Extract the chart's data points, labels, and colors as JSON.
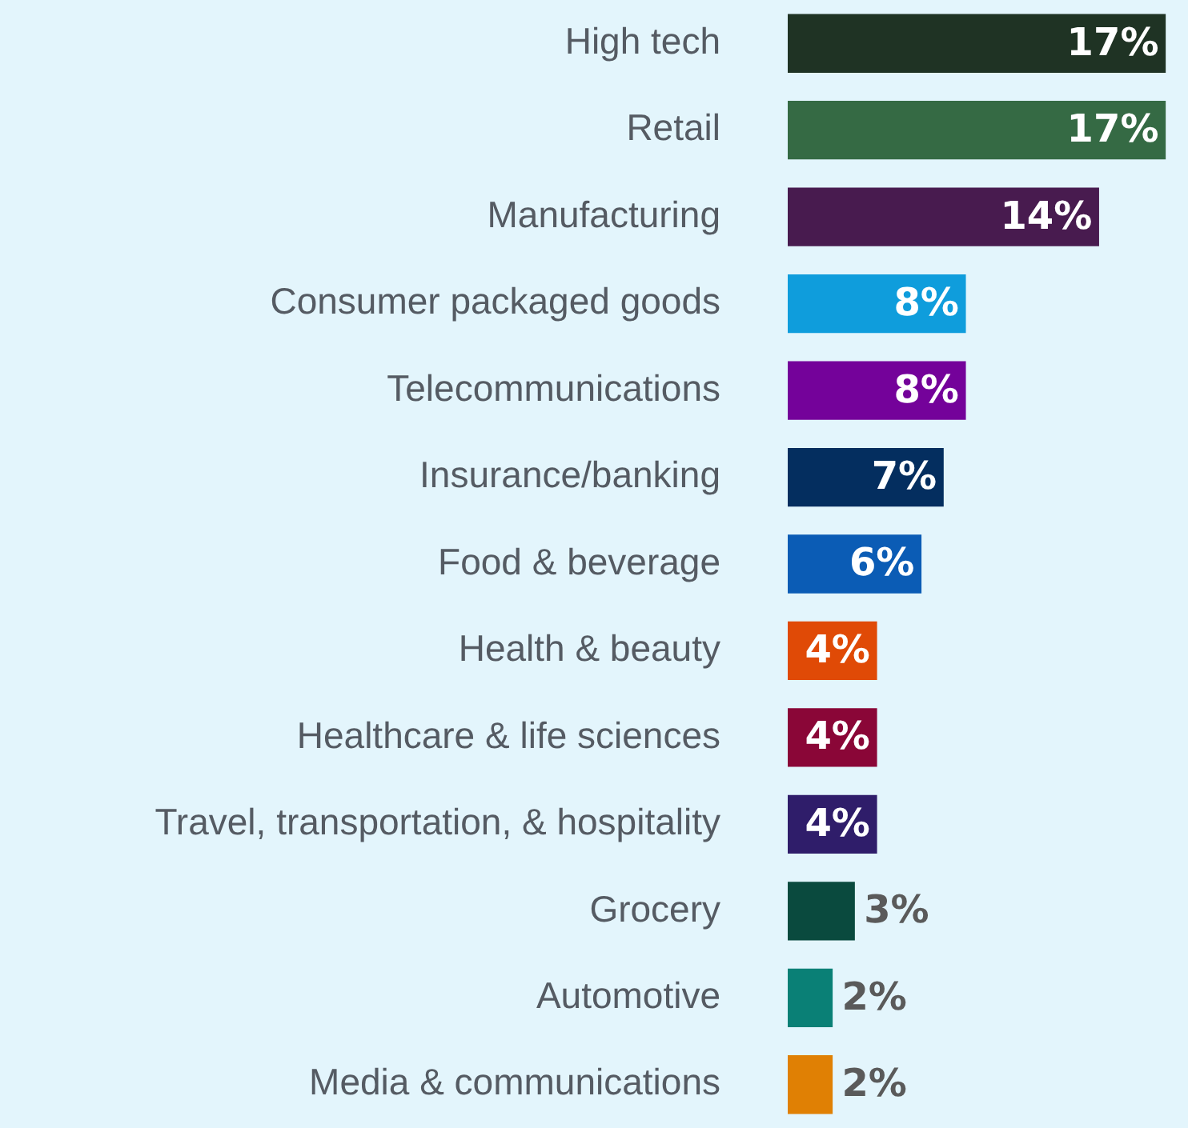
{
  "chart_data": {
    "type": "bar",
    "orientation": "horizontal",
    "categories": [
      "High tech",
      "Retail",
      "Manufacturing",
      "Consumer packaged goods",
      "Telecommunications",
      "Insurance/banking",
      "Food & beverage",
      "Health & beauty",
      "Healthcare & life sciences",
      "Travel, transportation, & hospitality",
      "Grocery",
      "Automotive",
      "Media & communications"
    ],
    "values": [
      17,
      17,
      14,
      8,
      8,
      7,
      6,
      4,
      4,
      4,
      3,
      2,
      2
    ],
    "colors": [
      "#1f3324",
      "#356a44",
      "#481b4f",
      "#0f9ddc",
      "#74029a",
      "#042e5f",
      "#0b5cb5",
      "#e04a06",
      "#8a0637",
      "#2f1d6a",
      "#0a4a3e",
      "#0a8076",
      "#e08004"
    ],
    "value_labels": [
      "17%",
      "17%",
      "14%",
      "8%",
      "8%",
      "7%",
      "6%",
      "4%",
      "4%",
      "4%",
      "3%",
      "2%",
      "2%"
    ],
    "tick_labels": "y",
    "grid": false,
    "legend": false
  }
}
